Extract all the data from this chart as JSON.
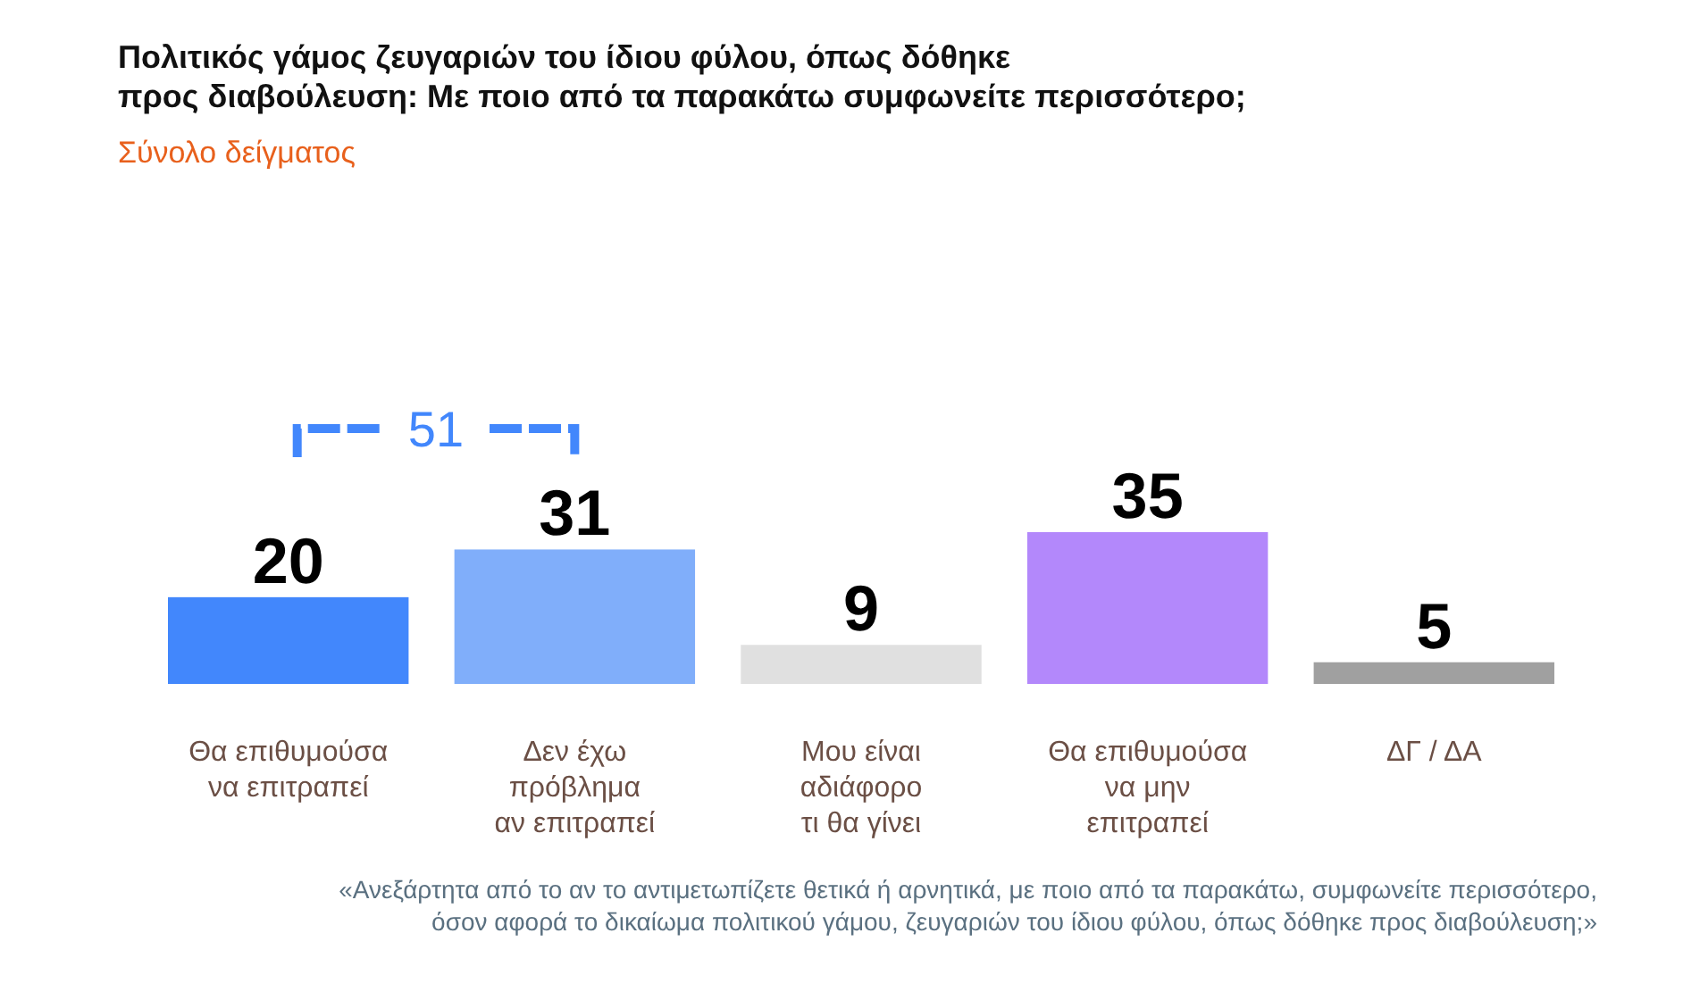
{
  "chart_data": {
    "type": "bar",
    "title": "Πολιτικός γάμος ζευγαριών του ίδιου φύλου, όπως δόθηκε\nπρος διαβούλευση: Με ποιο από τα παρακάτω συμφωνείτε περισσότερο;",
    "subtitle": "Σύνολο δείγματος",
    "categories": [
      "Θα επιθυμούσα\nνα επιτραπεί",
      "Δεν έχω\nπρόβλημα\nαν επιτραπεί",
      "Μου είναι\nαδιάφορο\nτι θα γίνει",
      "Θα επιθυμούσα\nνα μην\nεπιτραπεί",
      "ΔΓ / ΔΑ"
    ],
    "values": [
      20,
      31,
      9,
      35,
      5
    ],
    "colors": [
      "#4287fc",
      "#80aefa",
      "#e0e0e0",
      "#b388fb",
      "#a0a0a0"
    ],
    "data_labels": true,
    "annotations": [
      "51",
      "«Ανεξάρτητα από το αν το αντιμετωπίζετε θετικά ή αρνητικά, με ποιο από τα παρακάτω, συμφωνείτε περισσότερο,\nόσον αφορά το δικαίωμα πολιτικού γάμου, ζευγαριών του ίδιου φύλου, όπως δόθηκε προς διαβούλευση;»"
    ]
  }
}
